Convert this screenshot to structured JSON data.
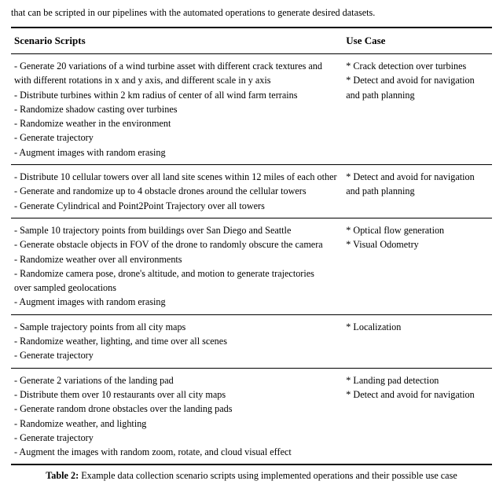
{
  "intro_text": "that can be scripted in our pipelines with the automated operations to generate desired datasets.",
  "headers": {
    "scripts": "Scenario Scripts",
    "usecase": "Use Case"
  },
  "rows": [
    {
      "scripts": [
        "- Generate 20 variations of a wind turbine asset with different crack textures and",
        "with different rotations in x and y axis, and different scale in y axis",
        "- Distribute turbines within 2 km radius of center of all wind farm terrains",
        "- Randomize shadow casting over turbines",
        "- Randomize weather in the environment",
        "- Generate trajectory",
        "- Augment images with random erasing"
      ],
      "usecase": [
        "* Crack detection over turbines",
        "* Detect and avoid for navigation",
        "and path planning"
      ]
    },
    {
      "scripts": [
        "- Distribute 10 cellular towers over all land site scenes within 12 miles of each other",
        "- Generate and randomize up to 4 obstacle drones around the cellular towers",
        "- Generate Cylindrical and Point2Point Trajectory over all towers"
      ],
      "usecase": [
        "* Detect and avoid for navigation",
        "and path planning"
      ]
    },
    {
      "scripts": [
        "- Sample 10 trajectory points from buildings over San Diego and Seattle",
        "- Generate obstacle objects in FOV of the drone to randomly obscure the camera",
        "- Randomize weather over all environments",
        "- Randomize camera pose, drone's altitude, and motion to generate trajectories",
        "over sampled geolocations",
        "- Augment images with random erasing"
      ],
      "usecase": [
        "* Optical flow generation",
        "* Visual Odometry"
      ]
    },
    {
      "scripts": [
        "- Sample trajectory points from all city maps",
        "- Randomize weather, lighting, and time over all scenes",
        "- Generate trajectory"
      ],
      "usecase": [
        "* Localization"
      ]
    },
    {
      "scripts": [
        "- Generate 2 variations of the landing pad",
        "- Distribute them over 10 restaurants over all city maps",
        "- Generate random drone obstacles over the landing pads",
        "- Randomize weather, and lighting",
        "- Generate trajectory",
        "- Augment the images with random zoom, rotate, and cloud visual effect"
      ],
      "usecase": [
        "* Landing pad detection",
        "* Detect and avoid for navigation"
      ]
    }
  ],
  "caption_label": "Table 2:",
  "caption_text": " Example data collection scenario scripts using implemented operations and their possible use case"
}
